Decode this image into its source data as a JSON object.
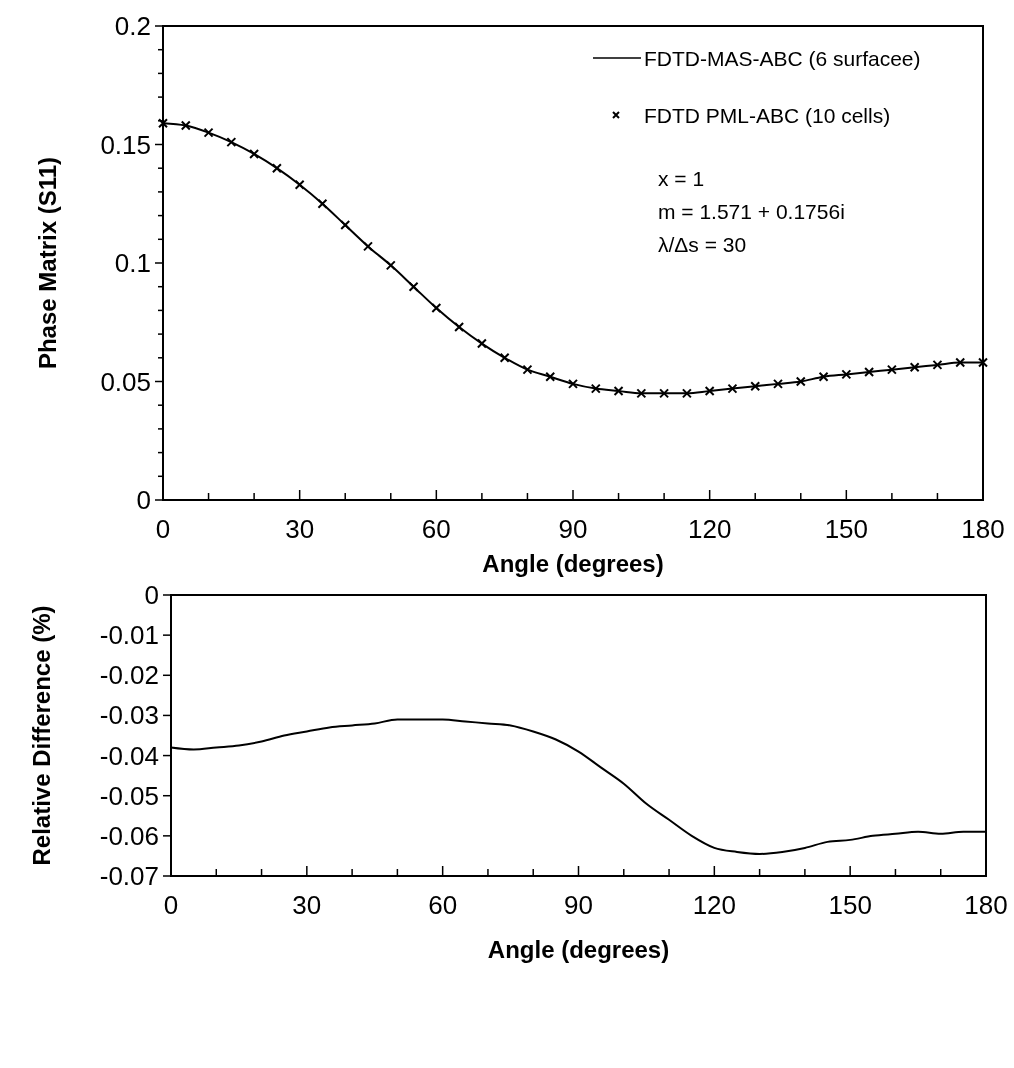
{
  "chart_data": [
    {
      "type": "line",
      "xlabel": "Angle (degrees)",
      "ylabel": "Phase Matrix (S11)",
      "xlim": [
        0,
        180
      ],
      "ylim": [
        0,
        0.2
      ],
      "xticks": [
        0,
        {
          "value": 10,
          "label": null
        },
        {
          "value": 20,
          "label": null
        },
        30,
        {
          "value": 40,
          "label": null
        },
        {
          "value": 50,
          "label": null
        },
        60,
        {
          "value": 70,
          "label": null
        },
        {
          "value": 80,
          "label": null
        },
        90,
        {
          "value": 100,
          "label": null
        },
        {
          "value": 110,
          "label": null
        },
        120,
        {
          "value": 130,
          "label": null
        },
        {
          "value": 140,
          "label": null
        },
        150,
        {
          "value": 160,
          "label": null
        },
        {
          "value": 170,
          "label": null
        },
        180
      ],
      "yticks": [
        0,
        {
          "value": 0.01,
          "label": null
        },
        {
          "value": 0.02,
          "label": null
        },
        {
          "value": 0.03,
          "label": null
        },
        {
          "value": 0.04,
          "label": null
        },
        0.05,
        {
          "value": 0.06,
          "label": null
        },
        {
          "value": 0.07,
          "label": null
        },
        {
          "value": 0.08,
          "label": null
        },
        {
          "value": 0.09,
          "label": null
        },
        0.1,
        {
          "value": 0.11,
          "label": null
        },
        {
          "value": 0.12,
          "label": null
        },
        {
          "value": 0.13,
          "label": null
        },
        {
          "value": 0.14,
          "label": null
        },
        0.15,
        {
          "value": 0.16,
          "label": null
        },
        {
          "value": 0.17,
          "label": null
        },
        {
          "value": 0.18,
          "label": null
        },
        {
          "value": 0.19,
          "label": null
        },
        0.2
      ],
      "x": [
        0,
        5,
        10,
        15,
        20,
        25,
        30,
        35,
        40,
        45,
        50,
        55,
        60,
        65,
        70,
        75,
        80,
        85,
        90,
        95,
        100,
        105,
        110,
        115,
        120,
        125,
        130,
        135,
        140,
        145,
        150,
        155,
        160,
        165,
        170,
        175,
        180
      ],
      "series": [
        {
          "name": "FDTD PML-ABC (10 cells)",
          "type": "scatter",
          "marker": "cross",
          "color": "#000000",
          "values": [
            0.159,
            0.158,
            0.155,
            0.151,
            0.146,
            0.14,
            0.133,
            0.125,
            0.116,
            0.107,
            0.099,
            0.09,
            0.081,
            0.073,
            0.066,
            0.06,
            0.055,
            0.052,
            0.049,
            0.047,
            0.046,
            0.045,
            0.045,
            0.045,
            0.046,
            0.047,
            0.048,
            0.049,
            0.05,
            0.052,
            0.053,
            0.054,
            0.055,
            0.056,
            0.057,
            0.058,
            0.058
          ]
        },
        {
          "name": "FDTD-MAS-ABC (6 surfacee)",
          "type": "line",
          "line_style": "solid",
          "color": "#000000",
          "values": [
            0.159,
            0.158,
            0.155,
            0.151,
            0.146,
            0.14,
            0.133,
            0.125,
            0.116,
            0.107,
            0.099,
            0.09,
            0.081,
            0.073,
            0.066,
            0.06,
            0.055,
            0.052,
            0.049,
            0.047,
            0.046,
            0.045,
            0.045,
            0.045,
            0.046,
            0.047,
            0.048,
            0.049,
            0.05,
            0.052,
            0.053,
            0.054,
            0.055,
            0.056,
            0.057,
            0.058,
            0.058
          ]
        }
      ],
      "annotations": [
        "x  = 1",
        "m = 1.571 + 0.1756i",
        "λ/Δs = 30"
      ],
      "legend": "top right",
      "grid": false
    },
    {
      "type": "line",
      "xlabel": "Angle (degrees)",
      "ylabel": "Relative Difference (%)",
      "xlim": [
        0,
        180
      ],
      "ylim": [
        -0.07,
        0
      ],
      "xticks": [
        0,
        {
          "value": 10,
          "label": null
        },
        {
          "value": 20,
          "label": null
        },
        30,
        {
          "value": 40,
          "label": null
        },
        {
          "value": 50,
          "label": null
        },
        60,
        {
          "value": 70,
          "label": null
        },
        {
          "value": 80,
          "label": null
        },
        90,
        {
          "value": 100,
          "label": null
        },
        {
          "value": 110,
          "label": null
        },
        120,
        {
          "value": 130,
          "label": null
        },
        {
          "value": 140,
          "label": null
        },
        150,
        {
          "value": 160,
          "label": null
        },
        {
          "value": 170,
          "label": null
        },
        180
      ],
      "yticks": [
        -0.07,
        -0.06,
        -0.05,
        -0.04,
        -0.03,
        -0.02,
        -0.01,
        0
      ],
      "x": [
        0,
        5,
        10,
        15,
        20,
        25,
        30,
        35,
        40,
        45,
        50,
        55,
        60,
        65,
        70,
        75,
        80,
        85,
        90,
        95,
        100,
        105,
        110,
        115,
        120,
        125,
        130,
        135,
        140,
        145,
        150,
        155,
        160,
        165,
        170,
        175,
        180
      ],
      "series": [
        {
          "color": "#000000",
          "line_style": "solid",
          "values": [
            -0.038,
            -0.0385,
            -0.038,
            -0.0375,
            -0.0365,
            -0.035,
            -0.034,
            -0.033,
            -0.0325,
            -0.032,
            -0.031,
            -0.031,
            -0.031,
            -0.0315,
            -0.032,
            -0.0325,
            -0.034,
            -0.036,
            -0.039,
            -0.043,
            -0.047,
            -0.052,
            -0.056,
            -0.06,
            -0.063,
            -0.064,
            -0.0645,
            -0.064,
            -0.063,
            -0.0615,
            -0.061,
            -0.06,
            -0.0595,
            -0.059,
            -0.0595,
            -0.059,
            -0.059
          ]
        }
      ],
      "legend": false,
      "grid": false
    }
  ]
}
